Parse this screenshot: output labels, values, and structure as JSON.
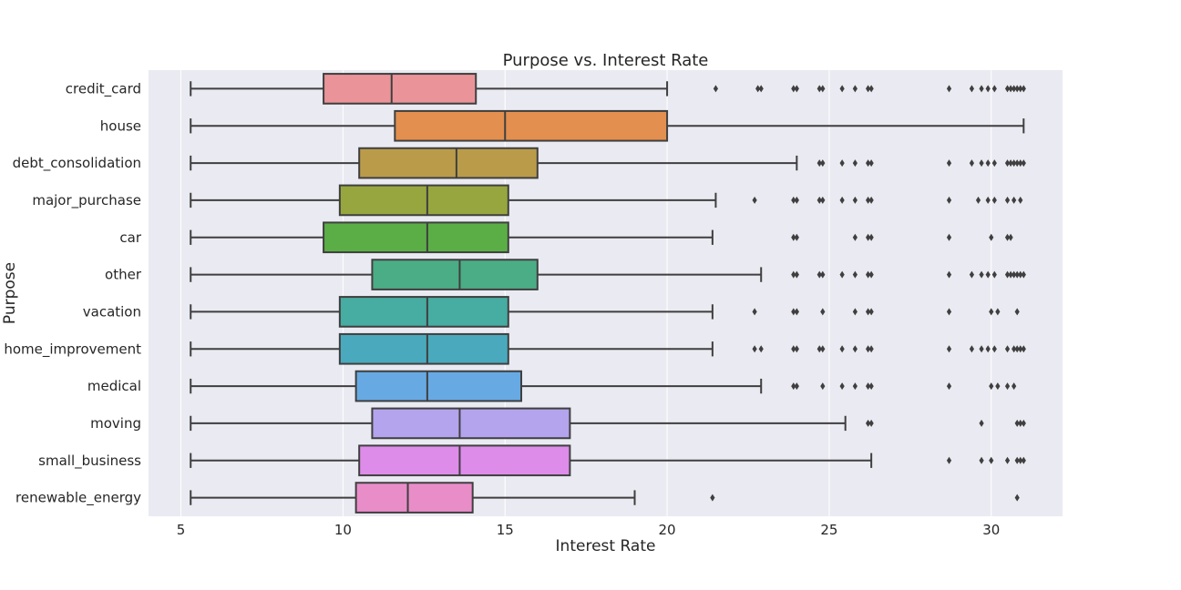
{
  "chart_data": {
    "type": "box",
    "title": "Purpose vs. Interest Rate",
    "xlabel": "Interest Rate",
    "ylabel": "Purpose",
    "xlim": [
      4.0,
      32.2
    ],
    "xticks": [
      5,
      10,
      15,
      20,
      25,
      30
    ],
    "grid": true,
    "orientation": "horizontal",
    "categories": [
      {
        "name": "credit_card",
        "color": "#ea9499",
        "whisker_low": 5.3,
        "q1": 9.4,
        "median": 11.5,
        "q3": 14.1,
        "whisker_high": 20.0,
        "outliers": [
          21.5,
          22.8,
          22.9,
          23.9,
          24.0,
          24.7,
          24.8,
          25.4,
          25.8,
          26.2,
          26.3,
          28.7,
          29.4,
          29.7,
          29.9,
          30.1,
          30.5,
          30.6,
          30.7,
          30.8,
          30.9,
          31.0
        ]
      },
      {
        "name": "house",
        "color": "#e38f4f",
        "whisker_low": 5.3,
        "q1": 11.6,
        "median": 15.0,
        "q3": 20.0,
        "whisker_high": 31.0,
        "outliers": []
      },
      {
        "name": "debt_consolidation",
        "color": "#b99b4a",
        "whisker_low": 5.3,
        "q1": 10.5,
        "median": 13.5,
        "q3": 16.0,
        "whisker_high": 24.0,
        "outliers": [
          24.7,
          24.8,
          25.4,
          25.8,
          26.2,
          26.3,
          28.7,
          29.4,
          29.7,
          29.9,
          30.1,
          30.5,
          30.6,
          30.7,
          30.8,
          30.9,
          31.0
        ]
      },
      {
        "name": "major_purchase",
        "color": "#97a63f",
        "whisker_low": 5.3,
        "q1": 9.9,
        "median": 12.6,
        "q3": 15.1,
        "whisker_high": 21.5,
        "outliers": [
          22.7,
          23.9,
          24.0,
          24.7,
          24.8,
          25.4,
          25.8,
          26.2,
          26.3,
          28.7,
          29.6,
          29.9,
          30.1,
          30.5,
          30.7,
          30.9
        ]
      },
      {
        "name": "car",
        "color": "#5bae46",
        "whisker_low": 5.3,
        "q1": 9.4,
        "median": 12.6,
        "q3": 15.1,
        "whisker_high": 21.4,
        "outliers": [
          23.9,
          24.0,
          25.8,
          26.2,
          26.3,
          28.7,
          30.0,
          30.5,
          30.6
        ]
      },
      {
        "name": "other",
        "color": "#4bad85",
        "whisker_low": 5.3,
        "q1": 10.9,
        "median": 13.6,
        "q3": 16.0,
        "whisker_high": 22.9,
        "outliers": [
          23.9,
          24.0,
          24.7,
          24.8,
          25.4,
          25.8,
          26.2,
          26.3,
          28.7,
          29.4,
          29.7,
          29.9,
          30.1,
          30.5,
          30.6,
          30.7,
          30.8,
          30.9,
          31.0
        ]
      },
      {
        "name": "vacation",
        "color": "#47aca2",
        "whisker_low": 5.3,
        "q1": 9.9,
        "median": 12.6,
        "q3": 15.1,
        "whisker_high": 21.4,
        "outliers": [
          22.7,
          23.9,
          24.0,
          24.8,
          25.8,
          26.2,
          26.3,
          28.7,
          30.0,
          30.2,
          30.8
        ]
      },
      {
        "name": "home_improvement",
        "color": "#4aa9bd",
        "whisker_low": 5.3,
        "q1": 9.9,
        "median": 12.6,
        "q3": 15.1,
        "whisker_high": 21.4,
        "outliers": [
          22.7,
          22.9,
          23.9,
          24.0,
          24.7,
          24.8,
          25.4,
          25.8,
          26.2,
          26.3,
          28.7,
          29.4,
          29.7,
          29.9,
          30.1,
          30.5,
          30.7,
          30.8,
          30.9,
          31.0
        ]
      },
      {
        "name": "medical",
        "color": "#67a9e3",
        "whisker_low": 5.3,
        "q1": 10.4,
        "median": 12.6,
        "q3": 15.5,
        "whisker_high": 22.9,
        "outliers": [
          23.9,
          24.0,
          24.8,
          25.4,
          25.8,
          26.2,
          26.3,
          28.7,
          30.0,
          30.2,
          30.5,
          30.7
        ]
      },
      {
        "name": "moving",
        "color": "#b4a4ed",
        "whisker_low": 5.3,
        "q1": 10.9,
        "median": 13.6,
        "q3": 17.0,
        "whisker_high": 25.5,
        "outliers": [
          26.2,
          26.3,
          29.7,
          30.8,
          30.9,
          31.0
        ]
      },
      {
        "name": "small_business",
        "color": "#dd8cea",
        "whisker_low": 5.3,
        "q1": 10.5,
        "median": 13.6,
        "q3": 17.0,
        "whisker_high": 26.3,
        "outliers": [
          28.7,
          29.7,
          30.0,
          30.5,
          30.8,
          30.9,
          31.0
        ]
      },
      {
        "name": "renewable_energy",
        "color": "#e98dc9",
        "whisker_low": 5.3,
        "q1": 10.4,
        "median": 12.0,
        "q3": 14.0,
        "whisker_high": 19.0,
        "outliers": [
          21.4,
          30.8
        ]
      }
    ]
  }
}
